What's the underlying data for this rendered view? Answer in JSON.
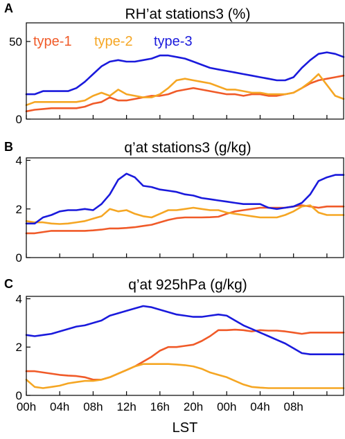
{
  "figure": {
    "x_label": "LST",
    "x_tick_labels": [
      "00h",
      "04h",
      "08h",
      "12h",
      "16h",
      "20h",
      "00h",
      "04h",
      "08h"
    ]
  },
  "legend": [
    {
      "name": "type-1",
      "color": "#f05a28"
    },
    {
      "name": "type-2",
      "color": "#f5a623"
    },
    {
      "name": "type-3",
      "color": "#1a1adc"
    }
  ],
  "chart_data": [
    {
      "type": "line",
      "panel": "A",
      "title": "RH’at stations3 (%)",
      "ylim": [
        0,
        62
      ],
      "yticks": [
        0,
        50
      ],
      "x": [
        0,
        1,
        2,
        3,
        4,
        5,
        6,
        7,
        8,
        9,
        10,
        11,
        12,
        13,
        14,
        15,
        16,
        17,
        18,
        19,
        20,
        21,
        22,
        23,
        24,
        25,
        26,
        27,
        28,
        29,
        30,
        31,
        32,
        33,
        34,
        35,
        36,
        37,
        38
      ],
      "series": [
        {
          "name": "type-1",
          "color": "#f05a28",
          "values": [
            5,
            6,
            6.5,
            7,
            7,
            7,
            7,
            8,
            10,
            11,
            14,
            12,
            12,
            13,
            14,
            15,
            15,
            16,
            18,
            19,
            20,
            19,
            18,
            17,
            16,
            16,
            15,
            16,
            16,
            15,
            15,
            16,
            17,
            20,
            23,
            25,
            26,
            27,
            28
          ]
        },
        {
          "name": "type-2",
          "color": "#f5a623",
          "values": [
            9,
            11,
            11,
            11,
            11,
            11,
            11,
            12,
            15,
            17,
            15,
            19,
            16,
            15,
            14,
            14,
            16,
            20,
            25,
            26,
            25,
            24,
            23,
            21,
            19,
            19,
            18,
            17,
            17,
            16,
            16,
            16,
            17,
            20,
            24,
            29,
            22,
            15,
            13
          ]
        },
        {
          "name": "type-3",
          "color": "#1a1adc",
          "values": [
            16,
            16,
            18,
            18,
            18,
            18,
            20,
            24,
            29,
            34,
            37,
            38,
            37,
            37,
            38,
            39,
            41,
            41,
            40,
            39,
            37,
            35,
            33,
            32,
            31,
            30,
            29,
            28,
            27,
            26,
            25,
            25,
            27,
            33,
            38,
            42,
            43,
            42,
            40
          ]
        }
      ]
    },
    {
      "type": "line",
      "panel": "B",
      "title": "q’at stations3 (g/kg)",
      "ylim": [
        0,
        4.1
      ],
      "yticks": [
        0,
        2,
        4
      ],
      "x": [
        0,
        1,
        2,
        3,
        4,
        5,
        6,
        7,
        8,
        9,
        10,
        11,
        12,
        13,
        14,
        15,
        16,
        17,
        18,
        19,
        20,
        21,
        22,
        23,
        24,
        25,
        26,
        27,
        28,
        29,
        30,
        31,
        32,
        33,
        34,
        35,
        36,
        37,
        38
      ],
      "series": [
        {
          "name": "type-1",
          "color": "#f05a28",
          "values": [
            1,
            1,
            1.05,
            1.1,
            1.1,
            1.1,
            1.1,
            1.1,
            1.12,
            1.15,
            1.2,
            1.2,
            1.22,
            1.25,
            1.3,
            1.35,
            1.45,
            1.55,
            1.62,
            1.65,
            1.65,
            1.65,
            1.66,
            1.68,
            1.8,
            1.9,
            1.95,
            2,
            2.05,
            2.05,
            2.05,
            2.05,
            2.1,
            2.15,
            2.1,
            2.05,
            2.1,
            2.1,
            2.1
          ]
        },
        {
          "name": "type-2",
          "color": "#f5a623",
          "values": [
            1.5,
            1.45,
            1.45,
            1.4,
            1.38,
            1.4,
            1.45,
            1.5,
            1.6,
            1.7,
            2,
            1.9,
            1.95,
            1.8,
            1.7,
            1.65,
            1.8,
            1.95,
            1.95,
            2,
            2.05,
            2,
            1.95,
            1.95,
            1.85,
            1.8,
            1.75,
            1.7,
            1.65,
            1.65,
            1.65,
            1.75,
            1.9,
            2.1,
            2.15,
            1.85,
            1.75,
            1.75,
            1.75
          ]
        },
        {
          "name": "type-3",
          "color": "#1a1adc",
          "values": [
            1.4,
            1.4,
            1.65,
            1.75,
            1.9,
            1.95,
            1.95,
            2,
            1.95,
            2.2,
            2.6,
            3.2,
            3.45,
            3.3,
            2.95,
            2.9,
            2.8,
            2.75,
            2.7,
            2.6,
            2.55,
            2.45,
            2.4,
            2.35,
            2.3,
            2.25,
            2.2,
            2.2,
            2.2,
            2.05,
            2,
            2.05,
            2.1,
            2.25,
            2.6,
            3.15,
            3.3,
            3.4,
            3.4
          ]
        }
      ]
    },
    {
      "type": "line",
      "panel": "C",
      "title": "q’at 925hPa (g/kg)",
      "ylim": [
        0,
        4.1
      ],
      "yticks": [
        0,
        2,
        4
      ],
      "x": [
        0,
        1,
        2,
        3,
        4,
        5,
        6,
        7,
        8,
        9,
        10,
        11,
        12,
        13,
        14,
        15,
        16,
        17,
        18,
        19,
        20,
        21,
        22,
        23,
        24,
        25,
        26,
        27,
        28,
        29,
        30,
        31,
        32,
        33,
        34,
        35,
        36,
        37,
        38
      ],
      "series": [
        {
          "name": "type-1",
          "color": "#f05a28",
          "values": [
            1,
            1,
            0.95,
            0.9,
            0.85,
            0.82,
            0.8,
            0.75,
            0.65,
            0.65,
            0.75,
            0.9,
            1.05,
            1.2,
            1.4,
            1.6,
            1.85,
            2,
            2,
            2.05,
            2.1,
            2.25,
            2.45,
            2.7,
            2.7,
            2.72,
            2.7,
            2.65,
            2.7,
            2.68,
            2.68,
            2.65,
            2.6,
            2.55,
            2.6,
            2.6,
            2.6,
            2.6,
            2.6
          ]
        },
        {
          "name": "type-2",
          "color": "#f5a623",
          "values": [
            0.65,
            0.35,
            0.3,
            0.35,
            0.4,
            0.5,
            0.55,
            0.6,
            0.6,
            0.65,
            0.75,
            0.9,
            1.05,
            1.2,
            1.3,
            1.3,
            1.3,
            1.3,
            1.28,
            1.25,
            1.2,
            1.1,
            0.95,
            0.85,
            0.75,
            0.6,
            0.45,
            0.35,
            0.32,
            0.3,
            0.3,
            0.3,
            0.3,
            0.3,
            0.3,
            0.3,
            0.3,
            0.3,
            0.3
          ]
        },
        {
          "name": "type-3",
          "color": "#1a1adc",
          "values": [
            2.5,
            2.45,
            2.5,
            2.55,
            2.65,
            2.75,
            2.85,
            2.9,
            3,
            3.1,
            3.3,
            3.4,
            3.5,
            3.6,
            3.7,
            3.65,
            3.55,
            3.45,
            3.35,
            3.3,
            3.25,
            3.25,
            3.3,
            3.35,
            3.3,
            3.1,
            2.9,
            2.75,
            2.6,
            2.45,
            2.3,
            2.15,
            1.95,
            1.75,
            1.7,
            1.7,
            1.7,
            1.7,
            1.7
          ]
        }
      ]
    }
  ]
}
